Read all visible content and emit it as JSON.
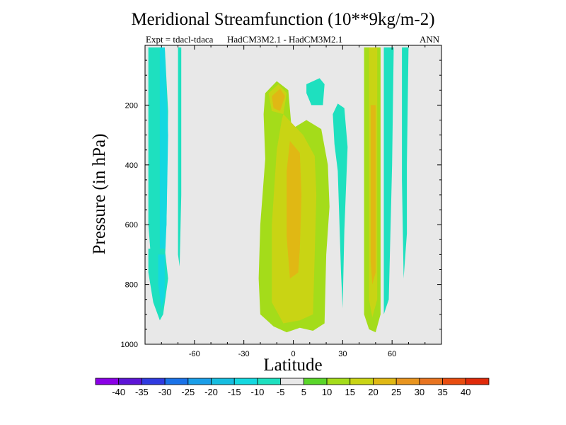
{
  "chart_data": {
    "type": "heatmap",
    "title": "Meridional Streamfunction (10**9kg/m-2)",
    "subtitle_left": "Expt = tdacl-tdaca",
    "subtitle_center": "HadCM3M2.1 - HadCM3M2.1",
    "subtitle_right": "ANN",
    "xlabel": "Latitude",
    "ylabel": "Pressure (in hPa)",
    "xlim": [
      -90,
      90
    ],
    "ylim": [
      1000,
      0
    ],
    "y_inverted": true,
    "x_ticks": [
      -60,
      -30,
      0,
      30,
      60
    ],
    "y_ticks": [
      200,
      400,
      600,
      800,
      1000
    ],
    "background_color": "#e8e8e8",
    "colorbar": {
      "boundaries": [
        "-40",
        "-35",
        "-30",
        "-25",
        "-20",
        "-15",
        "-10",
        "-5",
        "5",
        "10",
        "15",
        "20",
        "25",
        "30",
        "35",
        "40"
      ],
      "colors": [
        "#8a00e6",
        "#5c14d6",
        "#2f3ae0",
        "#1a72e8",
        "#1a9ee8",
        "#16bde0",
        "#14d8e0",
        "#1ee0bf",
        "#e8e8e8",
        "#5ad62a",
        "#a4dc1a",
        "#c9d414",
        "#e0b814",
        "#e8941e",
        "#e87420",
        "#e84d10",
        "#e02a0a"
      ]
    },
    "regions": [
      {
        "name": "sh-west-column",
        "value": -10,
        "polygon": [
          [
            -88,
            7
          ],
          [
            -78,
            7
          ],
          [
            -76,
            220
          ],
          [
            -77,
            600
          ],
          [
            -80,
            740
          ],
          [
            -86,
            740
          ],
          [
            -88,
            600
          ]
        ]
      },
      {
        "name": "sh-west-inner",
        "value": -15,
        "polygon": [
          [
            -81,
            7
          ],
          [
            -78,
            7
          ],
          [
            -76,
            300
          ],
          [
            -77,
            600
          ],
          [
            -78,
            730
          ],
          [
            -81,
            730
          ]
        ]
      },
      {
        "name": "sh-lower-lobe",
        "value": -10,
        "polygon": [
          [
            -88,
            680
          ],
          [
            -78,
            680
          ],
          [
            -76,
            780
          ],
          [
            -79,
            900
          ],
          [
            -81,
            920
          ],
          [
            -85,
            860
          ],
          [
            -88,
            760
          ]
        ]
      },
      {
        "name": "sh-lower-lobe-inner",
        "value": -15,
        "polygon": [
          [
            -82,
            700
          ],
          [
            -78,
            700
          ],
          [
            -78,
            840
          ],
          [
            -80,
            880
          ],
          [
            -82,
            800
          ]
        ]
      },
      {
        "name": "sh-narrow-band",
        "value": -10,
        "polygon": [
          [
            -70,
            7
          ],
          [
            -68,
            7
          ],
          [
            -68,
            500
          ],
          [
            -69,
            740
          ],
          [
            -70,
            700
          ]
        ]
      },
      {
        "name": "central-cell",
        "value": 10,
        "polygon": [
          [
            -17,
            160
          ],
          [
            -10,
            120
          ],
          [
            -3,
            150
          ],
          [
            -1,
            280
          ],
          [
            8,
            250
          ],
          [
            17,
            280
          ],
          [
            21,
            400
          ],
          [
            22,
            540
          ],
          [
            20,
            700
          ],
          [
            19,
            930
          ],
          [
            12,
            955
          ],
          [
            4,
            945
          ],
          [
            -4,
            960
          ],
          [
            -12,
            940
          ],
          [
            -20,
            900
          ],
          [
            -21,
            780
          ],
          [
            -20,
            600
          ],
          [
            -17,
            380
          ],
          [
            -18,
            230
          ]
        ]
      },
      {
        "name": "central-cell-upper",
        "value": 15,
        "polygon": [
          [
            -15,
            160
          ],
          [
            -9,
            130
          ],
          [
            -4,
            160
          ],
          [
            -6,
            230
          ],
          [
            -13,
            220
          ]
        ]
      },
      {
        "name": "central-cell-core",
        "value": 15,
        "polygon": [
          [
            -6,
            230
          ],
          [
            6,
            300
          ],
          [
            13,
            370
          ],
          [
            14,
            500
          ],
          [
            13,
            700
          ],
          [
            12,
            900
          ],
          [
            4,
            920
          ],
          [
            -6,
            930
          ],
          [
            -13,
            860
          ],
          [
            -13,
            600
          ],
          [
            -10,
            350
          ],
          [
            -7,
            250
          ]
        ]
      },
      {
        "name": "central-cell-peak",
        "value": 20,
        "polygon": [
          [
            -2,
            320
          ],
          [
            4,
            360
          ],
          [
            5,
            500
          ],
          [
            4,
            680
          ],
          [
            3,
            760
          ],
          [
            -2,
            780
          ],
          [
            -4,
            640
          ],
          [
            -4,
            420
          ]
        ]
      },
      {
        "name": "central-upper-orange",
        "value": 20,
        "polygon": [
          [
            -13,
            170
          ],
          [
            -8,
            145
          ],
          [
            -5,
            170
          ],
          [
            -8,
            220
          ],
          [
            -12,
            210
          ]
        ]
      },
      {
        "name": "nh-upper-blob",
        "value": -10,
        "polygon": [
          [
            8,
            130
          ],
          [
            16,
            110
          ],
          [
            19,
            130
          ],
          [
            18,
            200
          ],
          [
            11,
            200
          ],
          [
            8,
            160
          ]
        ]
      },
      {
        "name": "nh-mid-blob",
        "value": -10,
        "polygon": [
          [
            24,
            230
          ],
          [
            27,
            195
          ],
          [
            31,
            210
          ],
          [
            33,
            340
          ],
          [
            31,
            620
          ],
          [
            30,
            880
          ],
          [
            29,
            760
          ],
          [
            27,
            420
          ],
          [
            25,
            330
          ]
        ]
      },
      {
        "name": "nh-mid-blob-2",
        "value": -10,
        "polygon": [
          [
            27,
            230
          ],
          [
            30,
            210
          ],
          [
            32,
            280
          ],
          [
            30,
            400
          ],
          [
            28,
            320
          ]
        ]
      },
      {
        "name": "nh-column",
        "value": 10,
        "polygon": [
          [
            43,
            7
          ],
          [
            53,
            7
          ],
          [
            53,
            900
          ],
          [
            50,
            960
          ],
          [
            46,
            950
          ],
          [
            43,
            900
          ],
          [
            43,
            500
          ]
        ]
      },
      {
        "name": "nh-column-inner",
        "value": 15,
        "polygon": [
          [
            46,
            7
          ],
          [
            51,
            7
          ],
          [
            51,
            850
          ],
          [
            48,
            910
          ],
          [
            46,
            850
          ]
        ]
      },
      {
        "name": "nh-column-core",
        "value": 20,
        "polygon": [
          [
            47,
            200
          ],
          [
            50,
            200
          ],
          [
            50,
            760
          ],
          [
            48,
            800
          ],
          [
            47,
            720
          ]
        ]
      },
      {
        "name": "nh-right-band",
        "value": -10,
        "polygon": [
          [
            55,
            7
          ],
          [
            61,
            7
          ],
          [
            60,
            400
          ],
          [
            58,
            850
          ],
          [
            55,
            900
          ],
          [
            55,
            500
          ]
        ]
      },
      {
        "name": "nh-right-narrow",
        "value": -10,
        "polygon": [
          [
            66,
            7
          ],
          [
            70,
            7
          ],
          [
            69,
            400
          ],
          [
            69,
            630
          ],
          [
            67,
            780
          ],
          [
            66,
            450
          ]
        ]
      }
    ]
  }
}
